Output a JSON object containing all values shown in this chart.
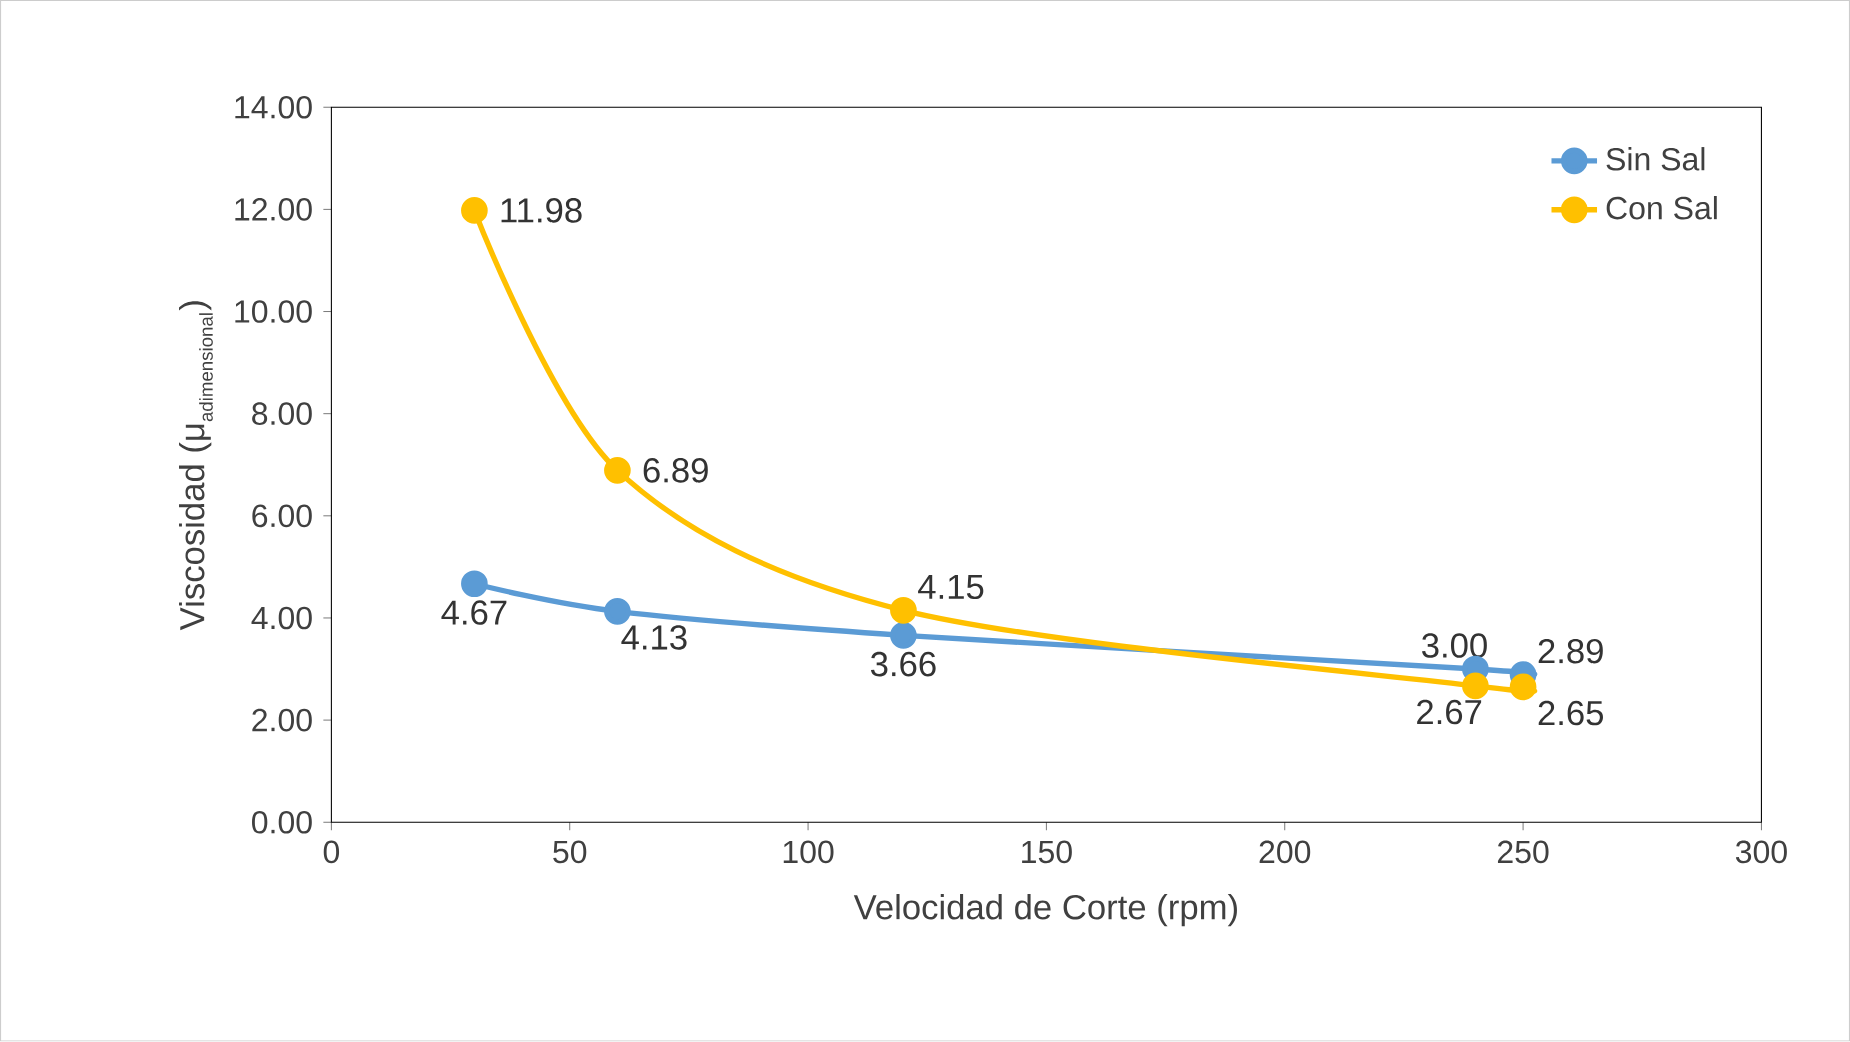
{
  "chart_data": {
    "type": "line",
    "xlabel": "Velocidad de Corte (rpm)",
    "ylabel": "\\mbox{Viscosidad (μ}_{\\mbox{\\scriptsize adimensional}}\\mbox{)}",
    "x": [
      30,
      60,
      120,
      240,
      250
    ],
    "series": [
      {
        "name": "Sin Sal",
        "color": "#5b9bd5",
        "values": [
          4.67,
          4.13,
          3.66,
          3.0,
          2.89
        ],
        "value_labels": [
          "4.67",
          "4.13",
          "3.66",
          "3.00",
          "2.89"
        ]
      },
      {
        "name": "Con Sal",
        "color": "#ffc000",
        "values": [
          11.98,
          6.89,
          4.15,
          2.67,
          2.65
        ],
        "value_labels": [
          "11.98",
          "6.89",
          "4.15",
          "2.67",
          "2.65"
        ]
      }
    ],
    "xlim": [
      0,
      300
    ],
    "xticks": [
      0,
      50,
      100,
      150,
      200,
      250,
      300
    ],
    "ylim": [
      0,
      14
    ],
    "yticks": [
      {
        "value": 0,
        "label": "0.00"
      },
      {
        "value": 2,
        "label": "2.00"
      },
      {
        "value": 4,
        "label": "4.00"
      },
      {
        "value": 6,
        "label": "6.00"
      },
      {
        "value": 8,
        "label": "8.00"
      },
      {
        "value": 10,
        "label": "10.00"
      },
      {
        "value": 12,
        "label": "12.00"
      },
      {
        "value": 14,
        "label": "14.00"
      }
    ],
    "legend": "top right",
    "marker": "circle",
    "line_style": "solid"
  }
}
